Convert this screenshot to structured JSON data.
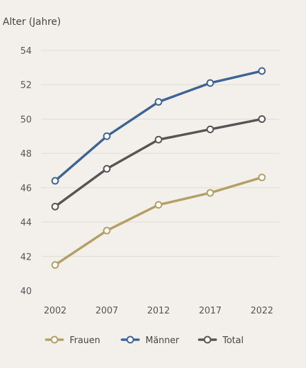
{
  "chart_data": {
    "type": "line",
    "ylabel": "Alter (Jahre)",
    "x": [
      "2002",
      "2007",
      "2012",
      "2017",
      "2022"
    ],
    "ylim": [
      40,
      54
    ],
    "yticks": [
      40,
      42,
      44,
      46,
      48,
      50,
      52,
      54
    ],
    "grid": "horizontal",
    "legend_position": "bottom",
    "series": [
      {
        "name": "Frauen",
        "color": "#b3a065",
        "values": [
          41.5,
          43.5,
          45.0,
          45.7,
          46.6
        ]
      },
      {
        "name": "Männer",
        "color": "#3c6596",
        "values": [
          46.4,
          49.0,
          51.0,
          52.1,
          52.8
        ]
      },
      {
        "name": "Total",
        "color": "#555555",
        "values": [
          44.9,
          47.1,
          48.8,
          49.4,
          50.0
        ]
      }
    ]
  }
}
